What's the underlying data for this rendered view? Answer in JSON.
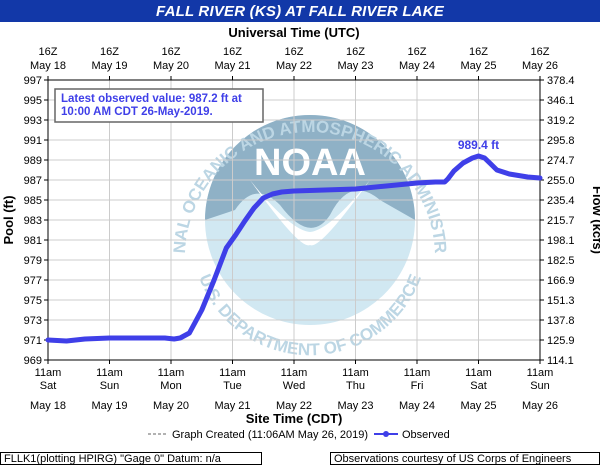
{
  "title": "FALL RIVER (KS) AT FALL RIVER LAKE",
  "footer_left": "FLLK1(plotting HPIRG) \"Gage 0\" Datum: n/a",
  "footer_right": "Observations courtesy of US Corps of Engineers",
  "colors": {
    "title_bar": "#1238a8",
    "series": "#3f3fe8",
    "grid": "#cccccc",
    "logo_dark": "#8fb1c6",
    "logo_light": "#d1e8f2",
    "logo_text": "#bcd6e4"
  },
  "logo": {
    "name": "noaa-logo",
    "center_text": "NOAA",
    "ring_top": "NATIONAL OCEANIC AND ATMOSPHERIC ADMINISTRATION",
    "ring_bottom": "U.S. DEPARTMENT OF COMMERCE"
  },
  "chart_data": {
    "type": "line",
    "top_axis_title": "Universal Time (UTC)",
    "bottom_axis_title": "Site Time (CDT)",
    "ylabel_left": "Pool (ft)",
    "ylabel_right": "Flow (kcfs)",
    "top_ticks": [
      {
        "day": 0,
        "hour": "16Z",
        "date": "May 18"
      },
      {
        "day": 1,
        "hour": "16Z",
        "date": "May 19"
      },
      {
        "day": 2,
        "hour": "16Z",
        "date": "May 20"
      },
      {
        "day": 3,
        "hour": "16Z",
        "date": "May 21"
      },
      {
        "day": 4,
        "hour": "16Z",
        "date": "May 22"
      },
      {
        "day": 5,
        "hour": "16Z",
        "date": "May 23"
      },
      {
        "day": 6,
        "hour": "16Z",
        "date": "May 24"
      },
      {
        "day": 7,
        "hour": "16Z",
        "date": "May 25"
      },
      {
        "day": 8,
        "hour": "16Z",
        "date": "May 26"
      }
    ],
    "bottom_ticks": [
      {
        "day": 0,
        "time": "11am",
        "weekday": "Sat",
        "date": "May 18"
      },
      {
        "day": 1,
        "time": "11am",
        "weekday": "Sun",
        "date": "May 19"
      },
      {
        "day": 2,
        "time": "11am",
        "weekday": "Mon",
        "date": "May 20"
      },
      {
        "day": 3,
        "time": "11am",
        "weekday": "Tue",
        "date": "May 21"
      },
      {
        "day": 4,
        "time": "11am",
        "weekday": "Wed",
        "date": "May 22"
      },
      {
        "day": 5,
        "time": "11am",
        "weekday": "Thu",
        "date": "May 23"
      },
      {
        "day": 6,
        "time": "11am",
        "weekday": "Fri",
        "date": "May 24"
      },
      {
        "day": 7,
        "time": "11am",
        "weekday": "Sat",
        "date": "May 25"
      },
      {
        "day": 8,
        "time": "11am",
        "weekday": "Sun",
        "date": "May 26"
      }
    ],
    "x_range": [
      0,
      8
    ],
    "y_left_range": [
      969,
      997
    ],
    "y_left_ticks": [
      969,
      971,
      973,
      975,
      977,
      979,
      981,
      983,
      985,
      987,
      989,
      991,
      993,
      995,
      997
    ],
    "y_right_ticks": [
      {
        "pool": 969,
        "label": "114.1"
      },
      {
        "pool": 971,
        "label": "125.9"
      },
      {
        "pool": 973,
        "label": "137.8"
      },
      {
        "pool": 975,
        "label": "151.3"
      },
      {
        "pool": 977,
        "label": "166.9"
      },
      {
        "pool": 979,
        "label": "182.5"
      },
      {
        "pool": 981,
        "label": "198.1"
      },
      {
        "pool": 983,
        "label": "215.7"
      },
      {
        "pool": 985,
        "label": "235.4"
      },
      {
        "pool": 987,
        "label": "255.0"
      },
      {
        "pool": 989,
        "label": "274.7"
      },
      {
        "pool": 991,
        "label": "295.8"
      },
      {
        "pool": 993,
        "label": "319.2"
      },
      {
        "pool": 995,
        "label": "346.1"
      },
      {
        "pool": 997,
        "label": "378.4"
      }
    ],
    "grid": true,
    "series": [
      {
        "name": "Observed",
        "x": [
          0,
          0.3,
          0.6,
          1.0,
          1.5,
          1.9,
          2.05,
          2.15,
          2.3,
          2.5,
          2.7,
          2.9,
          3.05,
          3.2,
          3.35,
          3.5,
          3.65,
          3.8,
          4.0,
          4.5,
          5.0,
          5.5,
          6.0,
          6.3,
          6.45,
          6.5,
          6.6,
          6.75,
          6.9,
          7.0,
          7.1,
          7.2,
          7.3,
          7.5,
          7.8,
          8.0
        ],
        "y": [
          971.0,
          970.9,
          971.1,
          971.2,
          971.2,
          971.2,
          971.1,
          971.2,
          971.7,
          974.0,
          977.0,
          980.2,
          981.5,
          982.9,
          984.2,
          985.2,
          985.6,
          985.8,
          985.9,
          986.0,
          986.1,
          986.4,
          986.7,
          986.8,
          986.8,
          987.1,
          987.9,
          988.7,
          989.2,
          989.4,
          989.2,
          988.6,
          988.0,
          987.6,
          987.3,
          987.2
        ]
      }
    ],
    "annotations": {
      "peak_label": "989.4 ft",
      "peak_x": 7.0,
      "peak_y": 989.4,
      "latest_box": [
        "Latest observed value: 987.2 ft at",
        "10:00 AM CDT 26-May-2019."
      ]
    },
    "legend": {
      "placement": "bottom",
      "graph_created": "Graph Created (11:06AM May 26, 2019)",
      "observed": "Observed"
    }
  }
}
